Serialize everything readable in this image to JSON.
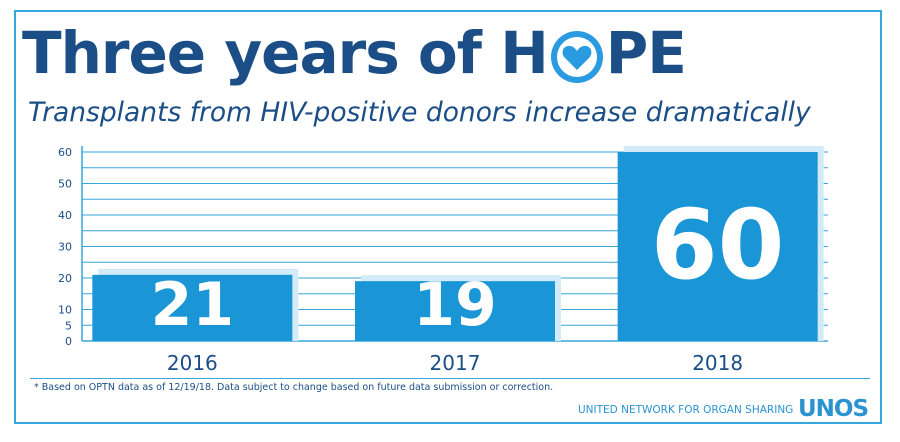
{
  "header": {
    "title_pre": "Three years of H",
    "title_post": "PE",
    "subtitle": "Transplants from HIV-positive donors increase dramatically"
  },
  "colors": {
    "navy": "#1b4e86",
    "bar": "#1a96d6",
    "bar_shadow": "#d3ebf8",
    "grid": "#36a6dd"
  },
  "chart_data": {
    "type": "bar",
    "categories": [
      "2016",
      "2017",
      "2018"
    ],
    "values": [
      21,
      19,
      60
    ],
    "value_labels": [
      "21",
      "19",
      "60"
    ],
    "ylim": [
      0,
      60
    ],
    "yticks": [
      0,
      5,
      10,
      20,
      30,
      40,
      50,
      60
    ],
    "grid": true
  },
  "footer": {
    "footnote": "* Based on OPTN data as of 12/19/18. Data subject to change based on future data submission or correction.",
    "org_name": "UNITED NETWORK FOR ORGAN SHARING",
    "logo_text": "UNOS"
  },
  "icons": {
    "hope_o": "heart-in-circle-icon"
  }
}
